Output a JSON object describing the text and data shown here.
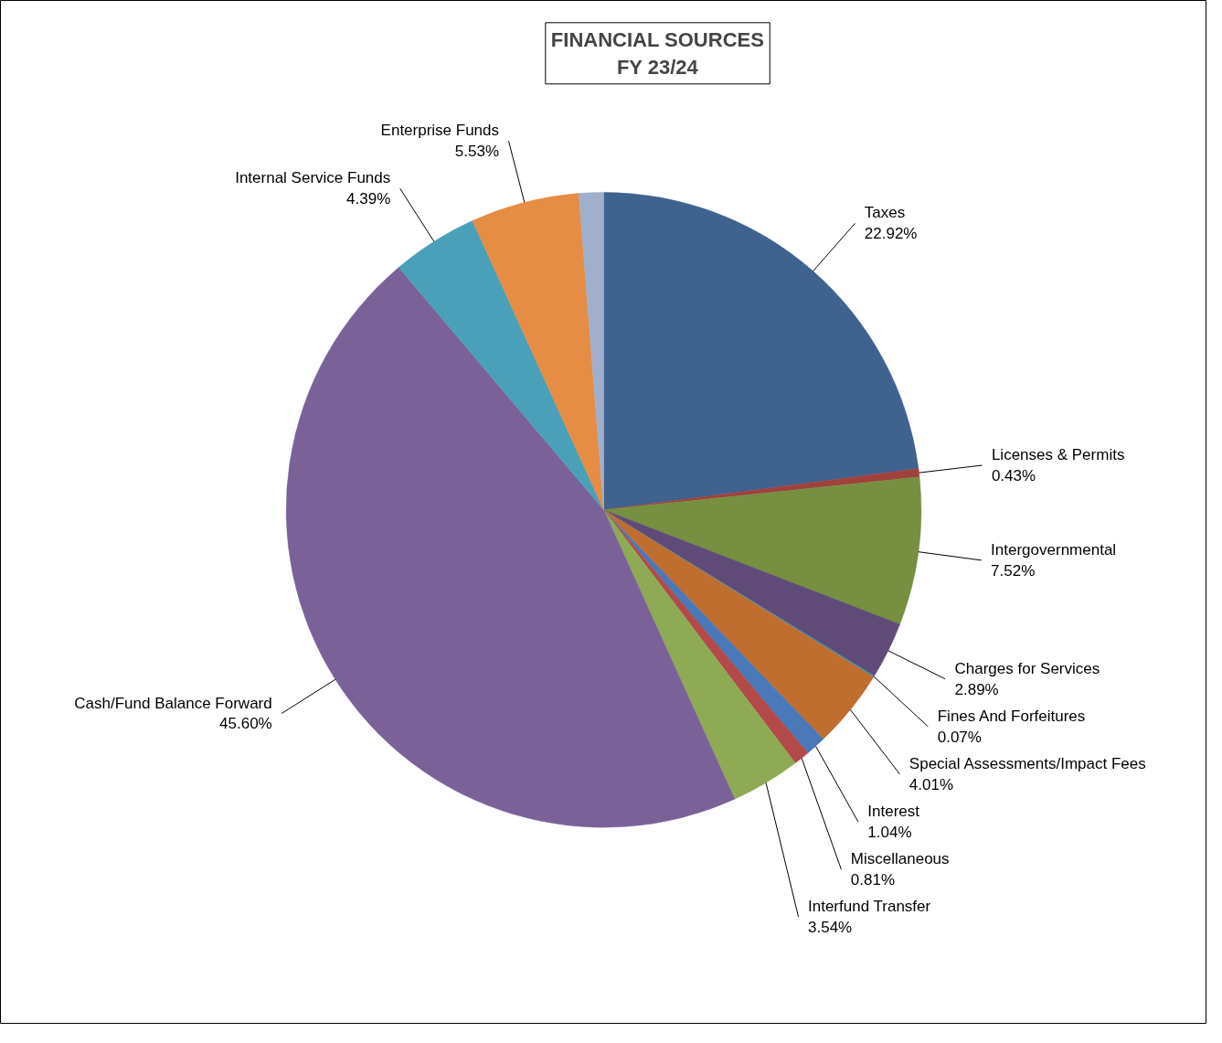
{
  "chart_data": {
    "type": "pie",
    "title": "FINANCIAL SOURCES\nFY 23/24",
    "categories": [
      "Taxes",
      "Licenses & Permits",
      "Intergovernmental",
      "Charges for Services",
      "Fines And Forfeitures",
      "Special Assessments/Impact Fees",
      "Interest",
      "Miscellaneous",
      "Interfund Transfer",
      "Cash/Fund Balance Forward",
      "Internal Service Funds",
      "Enterprise Funds",
      null
    ],
    "values": [
      22.92,
      0.43,
      7.52,
      2.89,
      0.07,
      4.01,
      1.04,
      0.81,
      3.54,
      45.6,
      4.39,
      5.53,
      1.25
    ],
    "value_labels": [
      "22.92%",
      "0.43%",
      "7.52%",
      "2.89%",
      "0.07%",
      "4.01%",
      "1.04%",
      "0.81%",
      "3.54%",
      "45.60%",
      "4.39%",
      "5.53%",
      null
    ],
    "colors": [
      "#3f628f",
      "#a0413e",
      "#768f41",
      "#5f4a78",
      "#3a8fa6",
      "#bf6e30",
      "#4a78b8",
      "#b24a4a",
      "#8faa55",
      "#7a6299",
      "#4aa0b8",
      "#e58d44",
      "#a0b0cc"
    ]
  }
}
